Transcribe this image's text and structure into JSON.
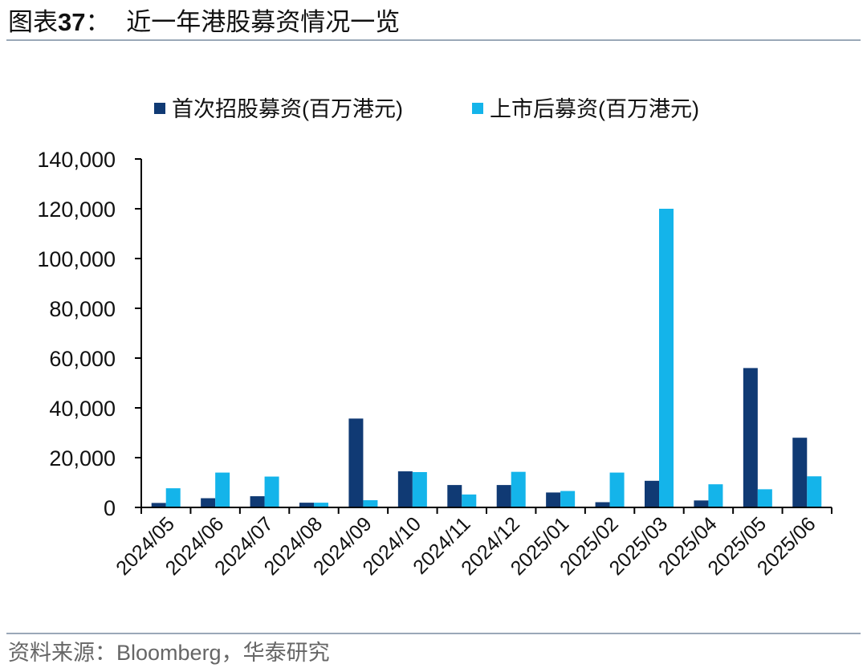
{
  "figure": {
    "label": "图表37：",
    "label_prefix": "图表",
    "label_number": "37",
    "label_colon": "：",
    "title": "近一年港股募资情况一览"
  },
  "source": {
    "prefix": "资料来源：",
    "name": "Bloomberg",
    "suffix": "，华泰研究"
  },
  "colors": {
    "ipo": "#103a74",
    "post_listing": "#14b4ea",
    "axis": "#000000"
  },
  "chart_data": {
    "type": "bar",
    "title": "",
    "xlabel": "",
    "ylabel": "",
    "ylim": [
      0,
      140000
    ],
    "yticks": [
      0,
      20000,
      40000,
      60000,
      80000,
      100000,
      120000,
      140000
    ],
    "ytick_labels": [
      "0",
      "20,000",
      "40,000",
      "60,000",
      "80,000",
      "100,000",
      "120,000",
      "140,000"
    ],
    "legend_position": "top",
    "grid": false,
    "categories": [
      "2024/05",
      "2024/06",
      "2024/07",
      "2024/08",
      "2024/09",
      "2024/10",
      "2024/11",
      "2024/12",
      "2025/01",
      "2025/02",
      "2025/03",
      "2025/04",
      "2025/05",
      "2025/06"
    ],
    "series": [
      {
        "name": "首次招股募资(百万港元)",
        "values": [
          1800,
          3700,
          4500,
          1900,
          35700,
          14500,
          9000,
          9000,
          6000,
          2100,
          10700,
          2800,
          56000,
          28000
        ]
      },
      {
        "name": "上市后募资(百万港元)",
        "values": [
          7700,
          14000,
          12400,
          1900,
          2900,
          14200,
          5200,
          14300,
          6600,
          14000,
          120000,
          9300,
          7300,
          12500
        ]
      }
    ]
  }
}
